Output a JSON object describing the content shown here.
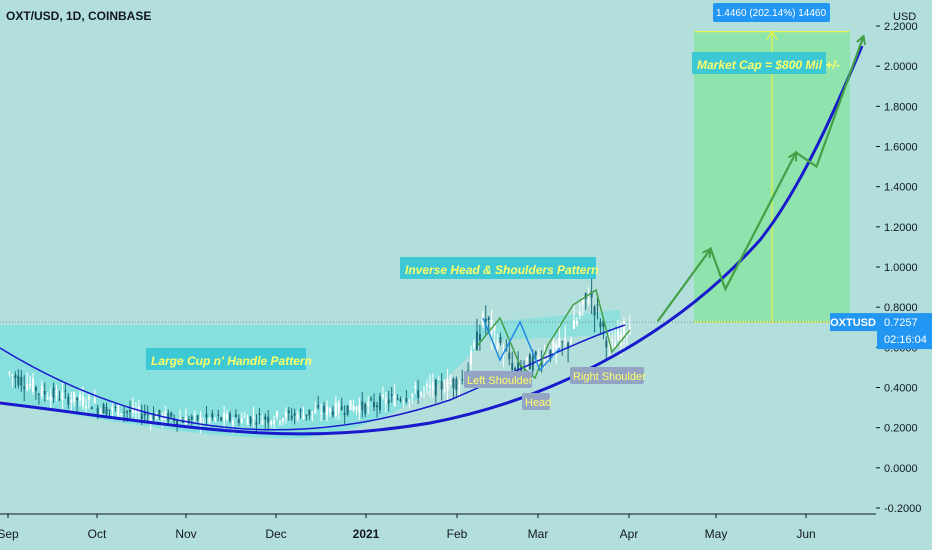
{
  "header": {
    "symbol_line": "OXT/USD, 1D, COINBASE"
  },
  "price_scale": {
    "unit": "USD"
  },
  "last_price": {
    "ticker": "OXTUSD",
    "value": "0.7257",
    "countdown": "02:16:04"
  },
  "measure_label": "1.4460 (202.14%) 14460",
  "annotations": {
    "market_cap": "Market Cap = $800 Mil +/-",
    "ihs_pattern": "Inverse Head & Shoulders Pattern",
    "cup_pattern": "Large Cup n' Handle Pattern",
    "left_shoulder": "Left Shoulder",
    "head": "Head",
    "right_shoulder": "Right Shoulder"
  },
  "colors": {
    "background": "#b2dfdb",
    "up_candle": "#ffffff",
    "down_candle": "#1e6b7b",
    "cup_fill": "#7fe0de",
    "target_box": "#8fe3ac",
    "blue_curve": "#1a1acd",
    "green_arrow": "#43a047",
    "label_box": "#3cc8d4",
    "label_text": "#ffff66",
    "price_tag": "#2196f3"
  },
  "chart_data": {
    "type": "candlestick",
    "title": "OXT/USD, 1D, COINBASE",
    "ylabel": "USD",
    "ylim": [
      -0.2,
      2.2
    ],
    "y_ticks": [
      "2.2000",
      "2.0000",
      "1.8000",
      "1.6000",
      "1.4000",
      "1.2000",
      "1.0000",
      "0.8000",
      "0.6000",
      "0.4000",
      "0.2000",
      "0.0000",
      "-0.2000"
    ],
    "x_ticks": [
      "Sep",
      "Oct",
      "Nov",
      "Dec",
      "2021",
      "Feb",
      "Mar",
      "Apr",
      "May",
      "Jun"
    ],
    "last_close": 0.7257,
    "target_high": 2.1717,
    "projected_path": [
      {
        "date": "2021-04-02",
        "value": 0.73
      },
      {
        "date": "2021-04-20",
        "value": 1.09
      },
      {
        "date": "2021-04-25",
        "value": 0.89
      },
      {
        "date": "2021-05-19",
        "value": 1.57
      },
      {
        "date": "2021-05-26",
        "value": 1.5
      },
      {
        "date": "2021-06-11",
        "value": 2.15
      }
    ],
    "grid": false,
    "legend": "none"
  }
}
